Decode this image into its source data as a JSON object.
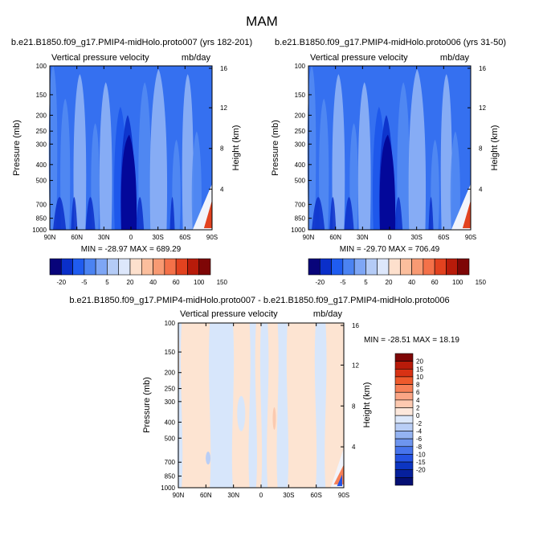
{
  "figure_title": "MAM",
  "chart_data": [
    {
      "type": "heatmap",
      "title": "b.e21.B1850.f09_g17.PMIP4-midHolo.proto007 (yrs 182-201)",
      "left_subtitle": "Vertical pressure velocity",
      "right_subtitle": "mb/day",
      "ylabel": "Pressure (mb)",
      "ylabel_right": "Height (km)",
      "x_ticks": [
        "90N",
        "60N",
        "30N",
        "0",
        "30S",
        "60S",
        "90S"
      ],
      "y_ticks": [
        100,
        150,
        200,
        250,
        300,
        400,
        500,
        700,
        850,
        1000
      ],
      "y_right_ticks": [
        4,
        8,
        12,
        16
      ],
      "stats_text": "MIN = -28.97   MAX = 689.29",
      "min": -28.97,
      "max": 689.29,
      "colorbar_labels": [
        "-20",
        "-5",
        "5",
        "20",
        "40",
        "60",
        "100",
        "150"
      ]
    },
    {
      "type": "heatmap",
      "title": "b.e21.B1850.f09_g17.PMIP4-midHolo.proto006 (yrs 31-50)",
      "left_subtitle": "Vertical pressure velocity",
      "right_subtitle": "mb/day",
      "ylabel": "Pressure (mb)",
      "ylabel_right": "Height (km)",
      "x_ticks": [
        "90N",
        "60N",
        "30N",
        "0",
        "30S",
        "60S",
        "90S"
      ],
      "y_ticks": [
        100,
        150,
        200,
        250,
        300,
        400,
        500,
        700,
        850,
        1000
      ],
      "y_right_ticks": [
        4,
        8,
        12,
        16
      ],
      "stats_text": "MIN = -29.70   MAX = 706.49",
      "min": -29.7,
      "max": 706.49,
      "colorbar_labels": [
        "-20",
        "-5",
        "5",
        "20",
        "40",
        "60",
        "100",
        "150"
      ]
    },
    {
      "type": "heatmap",
      "title": "b.e21.B1850.f09_g17.PMIP4-midHolo.proto007 - b.e21.B1850.f09_g17.PMIP4-midHolo.proto006",
      "left_subtitle": "Vertical pressure velocity",
      "right_subtitle": "mb/day",
      "ylabel": "Pressure (mb)",
      "ylabel_right": "Height (km)",
      "x_ticks": [
        "90N",
        "60N",
        "30N",
        "0",
        "30S",
        "60S",
        "90S"
      ],
      "y_ticks": [
        100,
        150,
        200,
        250,
        300,
        400,
        500,
        700,
        850,
        1000
      ],
      "y_right_ticks": [
        4,
        8,
        12,
        16
      ],
      "stats_text": "MIN = -28.51  MAX =  18.19",
      "min": -28.51,
      "max": 18.19,
      "colorbar_labels": [
        "20",
        "15",
        "10",
        "8",
        "6",
        "4",
        "2",
        "0",
        "-2",
        "-4",
        "-6",
        "-8",
        "-10",
        "-15",
        "-20"
      ]
    }
  ],
  "colors": {
    "top_colorbar": [
      "#08047a",
      "#0a2fc9",
      "#1f5cf0",
      "#4b83f2",
      "#7ea6f5",
      "#b4cbf6",
      "#dde7fb",
      "#fde0cd",
      "#fbbe9d",
      "#f89a73",
      "#f47149",
      "#e2421f",
      "#b81b0a",
      "#7e0606"
    ],
    "diff_colorbar": [
      "#7e0606",
      "#b81b0a",
      "#d83214",
      "#ee5a2c",
      "#f78057",
      "#fba585",
      "#fdc9b0",
      "#fde8dc",
      "#dce8fb",
      "#b9cef6",
      "#94b3f2",
      "#6e95ef",
      "#4774ec",
      "#2452e2",
      "#0c35c2",
      "#06209c",
      "#050f73"
    ],
    "field": {
      "deep": "#03089a",
      "strong": "#0a2fc9",
      "mid": "#1c55ea",
      "base": "#3570f0",
      "weak": "#5289f2",
      "pale": "#8fb2f5",
      "tan": "#fde4d2",
      "light_blue": "#d7e6fb",
      "red": "#e2421f"
    }
  }
}
